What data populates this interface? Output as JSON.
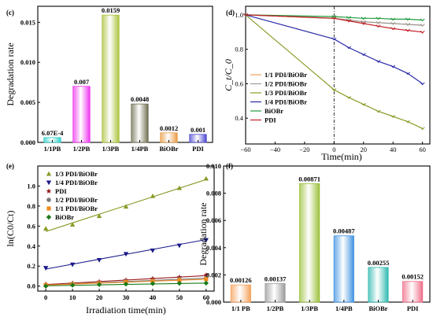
{
  "figure_type": "multi-panel chart figure",
  "chart_data": [
    {
      "panel": "(c)",
      "type": "bar",
      "xlabel": "",
      "ylabel": "Degradation rate",
      "ylim": [
        0,
        0.017
      ],
      "yticks": [
        "0.000",
        "0.005",
        "0.010",
        "0.015"
      ],
      "categories": [
        "1/1PB",
        "1/2PB",
        "1/3PB",
        "1/4PB",
        "BiOBr",
        "PDI"
      ],
      "values": [
        0.000607,
        0.007,
        0.0159,
        0.0048,
        0.0012,
        0.001
      ],
      "value_labels": [
        "6.07E-4",
        "0.007",
        "0.0159",
        "0.0048",
        "0.0012",
        "0.001"
      ],
      "colors": [
        "#2ad0c8",
        "#ee33ee",
        "#a8c23a",
        "#6e6e50",
        "#e89a40",
        "#4a46cf"
      ],
      "grid": false
    },
    {
      "panel": "(d)",
      "type": "line",
      "xlabel": "Time(min)",
      "ylabel": "C_t/C_0",
      "xlim": [
        -60,
        65
      ],
      "ylim": [
        0.25,
        1.05
      ],
      "xticks": [
        "−60",
        "−40",
        "−20",
        "0",
        "20",
        "40",
        "60"
      ],
      "yticks": [
        "0.4",
        "0.6",
        "0.8",
        "1.0"
      ],
      "x_dark": [
        -60,
        0
      ],
      "x_light": [
        0,
        10,
        20,
        30,
        40,
        50,
        60
      ],
      "marker_line_at_x": 0,
      "legend_position": "lower-left",
      "series": [
        {
          "name": "1/1 PDI/BiOBr",
          "color": "#f0a35a",
          "dark": [
            1.0,
            0.98
          ],
          "light": [
            0.98,
            0.97,
            0.96,
            0.955,
            0.95,
            0.945,
            0.94
          ]
        },
        {
          "name": "1/2 PDI/BiOBr",
          "color": "#9a9a9a",
          "dark": [
            1.0,
            0.98
          ],
          "light": [
            0.98,
            0.97,
            0.96,
            0.955,
            0.95,
            0.945,
            0.94
          ]
        },
        {
          "name": "1/3 PDI/BiOBr",
          "color": "#8a9a28",
          "dark": [
            1.0,
            0.565
          ],
          "light": [
            0.565,
            0.52,
            0.48,
            0.44,
            0.41,
            0.38,
            0.34
          ]
        },
        {
          "name": "1/4 PDI/BiOBr",
          "color": "#2a2aa8",
          "dark": [
            1.0,
            0.86
          ],
          "light": [
            0.86,
            0.81,
            0.77,
            0.73,
            0.7,
            0.66,
            0.6
          ]
        },
        {
          "name": "BiOBr",
          "color": "#1f9a3c",
          "dark": [
            1.0,
            0.99
          ],
          "light": [
            0.99,
            0.985,
            0.98,
            0.98,
            0.975,
            0.975,
            0.97
          ]
        },
        {
          "name": "PDI",
          "color": "#c32025",
          "dark": [
            1.0,
            0.98
          ],
          "light": [
            0.98,
            0.965,
            0.95,
            0.935,
            0.92,
            0.91,
            0.9
          ]
        }
      ]
    },
    {
      "panel": "(e)",
      "type": "scatter",
      "xlabel": "Irradiation time(min)",
      "ylabel": "ln(C0/Ct)",
      "xlim": [
        -3,
        63
      ],
      "ylim": [
        -0.05,
        1.2
      ],
      "xticks": [
        "0",
        "10",
        "20",
        "30",
        "40",
        "50",
        "60"
      ],
      "yticks": [
        "0.0",
        "0.2",
        "0.4",
        "0.6",
        "0.8",
        "1.0"
      ],
      "x": [
        0,
        10,
        20,
        30,
        40,
        50,
        60
      ],
      "legend_position": "top-left",
      "series": [
        {
          "name": "1/3 PDI/BiOBr",
          "color": "#8a9a28",
          "marker": "triangle-up",
          "values": [
            0.575,
            0.615,
            0.7,
            0.795,
            0.9,
            0.98,
            1.075
          ],
          "fit": [
            0.545,
            1.065
          ]
        },
        {
          "name": "1/4 PDI/BiOBr",
          "color": "#1a1a8a",
          "marker": "triangle-down",
          "values": [
            0.18,
            0.215,
            0.26,
            0.32,
            0.355,
            0.405,
            0.46
          ],
          "fit": [
            0.17,
            0.465
          ]
        },
        {
          "name": "PDI",
          "color": "#9a1a1a",
          "marker": "star",
          "values": [
            0.02,
            0.03,
            0.045,
            0.06,
            0.075,
            0.09,
            0.11
          ],
          "fit": [
            0.015,
            0.105
          ]
        },
        {
          "name": "1/2 PDI/BiOBr",
          "color": "#7a7a7a",
          "marker": "circle",
          "values": [
            0.01,
            0.02,
            0.03,
            0.045,
            0.055,
            0.07,
            0.08
          ],
          "fit": [
            0.01,
            0.08
          ]
        },
        {
          "name": "1/1 PDI/BiOBr",
          "color": "#f08a20",
          "marker": "square",
          "values": [
            0.01,
            0.018,
            0.026,
            0.04,
            0.05,
            0.06,
            0.07
          ],
          "fit": [
            0.01,
            0.068
          ]
        },
        {
          "name": "BiOBr",
          "color": "#1a7a1a",
          "marker": "diamond",
          "values": [
            0.0,
            0.01,
            0.015,
            0.02,
            0.025,
            0.028,
            0.03
          ],
          "fit": [
            0.003,
            0.03
          ]
        }
      ]
    },
    {
      "panel": "(f)",
      "type": "bar",
      "xlabel": "",
      "ylabel": "Degradation rate",
      "ylim": [
        0,
        0.01
      ],
      "yticks": [
        "0.000",
        "0.002",
        "0.004",
        "0.006",
        "0.008",
        "0.010"
      ],
      "categories": [
        "1/1 PB",
        "1/2PB",
        "1/3PB",
        "1/4PB",
        "BiOBr",
        "PDI"
      ],
      "values": [
        0.00126,
        0.00137,
        0.00871,
        0.00487,
        0.00255,
        0.00152
      ],
      "value_labels": [
        "0.00126",
        "0.00137",
        "0.00871",
        "0.00487",
        "0.00255",
        "0.00152"
      ],
      "colors": [
        "#f5a05a",
        "#9a9a9a",
        "#9ac03a",
        "#3f93e0",
        "#2eb8b0",
        "#ef6d88"
      ],
      "grid": false
    }
  ]
}
